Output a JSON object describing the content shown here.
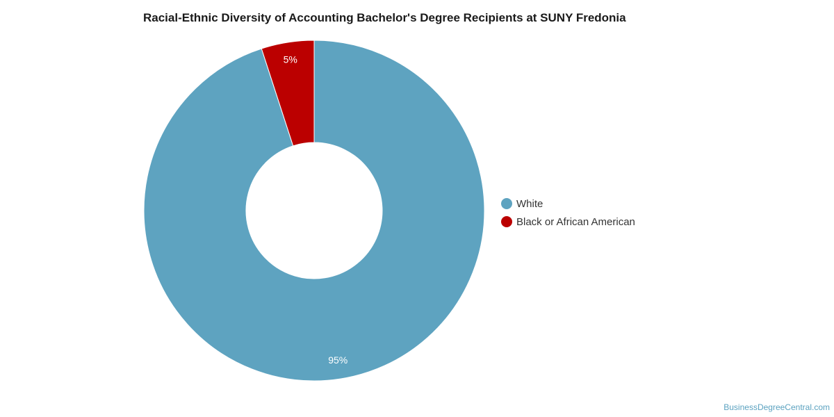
{
  "chart_data": {
    "type": "pie",
    "donut": true,
    "title": "Racial-Ethnic Diversity of Accounting Bachelor's Degree Recipients at SUNY Fredonia",
    "categories": [
      "White",
      "Black or African American"
    ],
    "values": [
      95,
      5
    ],
    "data_labels": [
      "95%",
      "5%"
    ],
    "colors": [
      "#5ea3c0",
      "#bb0000"
    ],
    "legend_position": "right"
  },
  "footer": {
    "source": "BusinessDegreeCentral.com"
  }
}
